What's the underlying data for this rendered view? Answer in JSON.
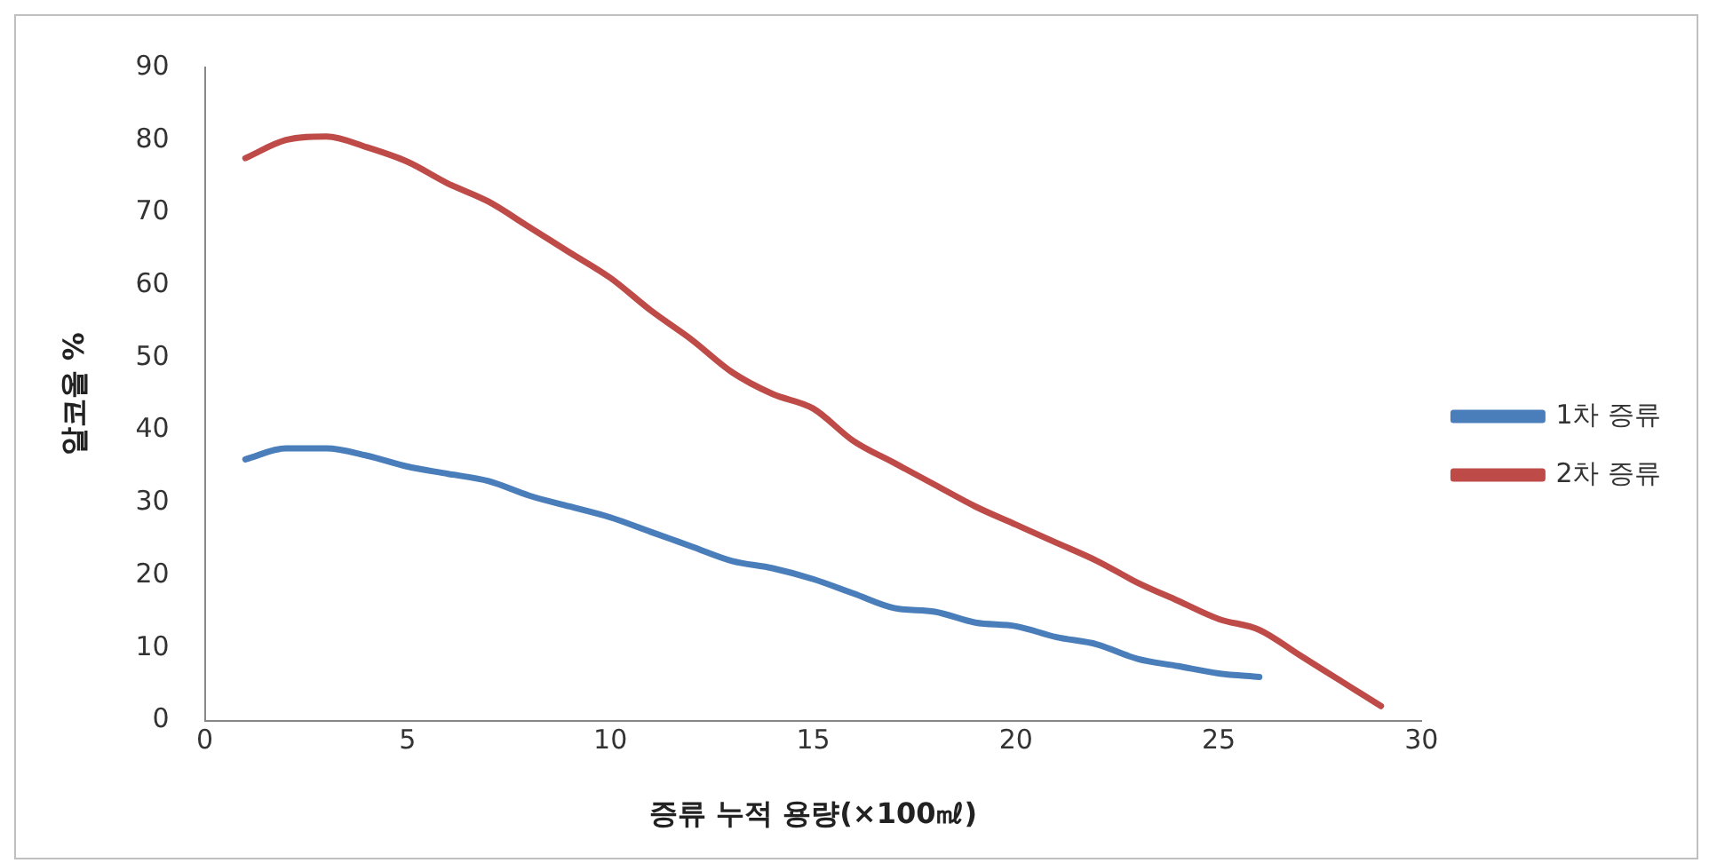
{
  "chart_data": {
    "type": "line",
    "xlabel": "증류 누적 용량(×100㎖)",
    "ylabel": "알코올 %",
    "xlim": [
      0,
      30
    ],
    "xticks": [
      0,
      5,
      10,
      15,
      20,
      25,
      30
    ],
    "ylim": [
      0,
      90
    ],
    "yticks": [
      0,
      10,
      20,
      30,
      40,
      50,
      60,
      70,
      80,
      90
    ],
    "grid": false,
    "legend": "right",
    "marker": "none",
    "line_style": "solid",
    "series": [
      {
        "name": "1차 증류",
        "color": "#4a7ebb",
        "x": [
          1,
          2,
          3,
          4,
          5,
          6,
          7,
          8,
          9,
          10,
          11,
          12,
          13,
          14,
          15,
          16,
          17,
          18,
          19,
          20,
          21,
          22,
          23,
          24,
          25,
          26
        ],
        "values": [
          36,
          37.5,
          37.5,
          36.5,
          35,
          34,
          33,
          31,
          29.5,
          28,
          26,
          24,
          22,
          21,
          19.5,
          17.5,
          15.5,
          15,
          13.5,
          13,
          11.5,
          10.5,
          8.5,
          7.5,
          6.5,
          6
        ]
      },
      {
        "name": "2차 증류",
        "color": "#be4b48",
        "x": [
          1,
          2,
          3,
          4,
          5,
          6,
          7,
          8,
          9,
          10,
          11,
          12,
          13,
          14,
          15,
          16,
          17,
          18,
          19,
          20,
          21,
          22,
          23,
          24,
          25,
          26,
          27,
          28,
          29
        ],
        "values": [
          77.5,
          80,
          80.5,
          79,
          77,
          74,
          71.5,
          68,
          64.5,
          61,
          56.5,
          52.5,
          48,
          45,
          43,
          38.5,
          35.5,
          32.5,
          29.5,
          27,
          24.5,
          22,
          19,
          16.5,
          14,
          12.5,
          9,
          5.5,
          2
        ]
      }
    ]
  }
}
